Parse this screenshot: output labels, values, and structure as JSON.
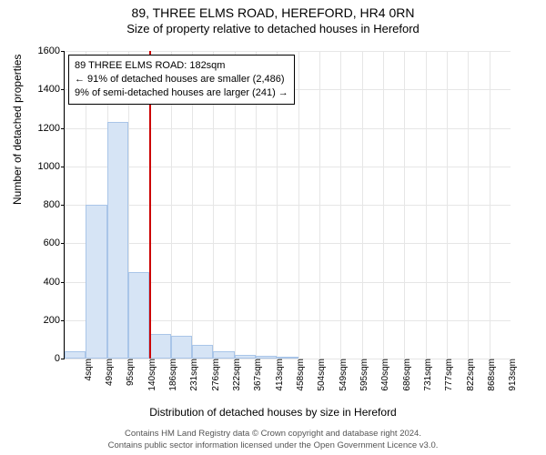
{
  "title": "89, THREE ELMS ROAD, HEREFORD, HR4 0RN",
  "subtitle": "Size of property relative to detached houses in Hereford",
  "y_axis_title": "Number of detached properties",
  "x_axis_title": "Distribution of detached houses by size in Hereford",
  "chart": {
    "type": "bar",
    "y": {
      "min": 0,
      "max": 1600,
      "ticks": [
        0,
        200,
        400,
        600,
        800,
        1000,
        1200,
        1400,
        1600
      ]
    },
    "x": {
      "labels": [
        "4sqm",
        "49sqm",
        "95sqm",
        "140sqm",
        "186sqm",
        "231sqm",
        "276sqm",
        "322sqm",
        "367sqm",
        "413sqm",
        "458sqm",
        "504sqm",
        "549sqm",
        "595sqm",
        "640sqm",
        "686sqm",
        "731sqm",
        "777sqm",
        "822sqm",
        "868sqm",
        "913sqm"
      ]
    },
    "bars": [
      38,
      800,
      1230,
      450,
      130,
      120,
      70,
      40,
      20,
      12,
      8,
      0,
      0,
      0,
      0,
      0,
      0,
      0,
      0,
      0,
      0
    ],
    "bar_fill": "#d6e4f5",
    "bar_border": "#a9c5e8",
    "grid_color": "#e6e6e6",
    "reference_index_after": 3,
    "reference_color": "#c00"
  },
  "annotation": {
    "line1": "89 THREE ELMS ROAD: 182sqm",
    "line2": "← 91% of detached houses are smaller (2,486)",
    "line3": "9% of semi-detached houses are larger (241) →"
  },
  "footer": {
    "line1": "Contains HM Land Registry data © Crown copyright and database right 2024.",
    "line2": "Contains public sector information licensed under the Open Government Licence v3.0."
  }
}
